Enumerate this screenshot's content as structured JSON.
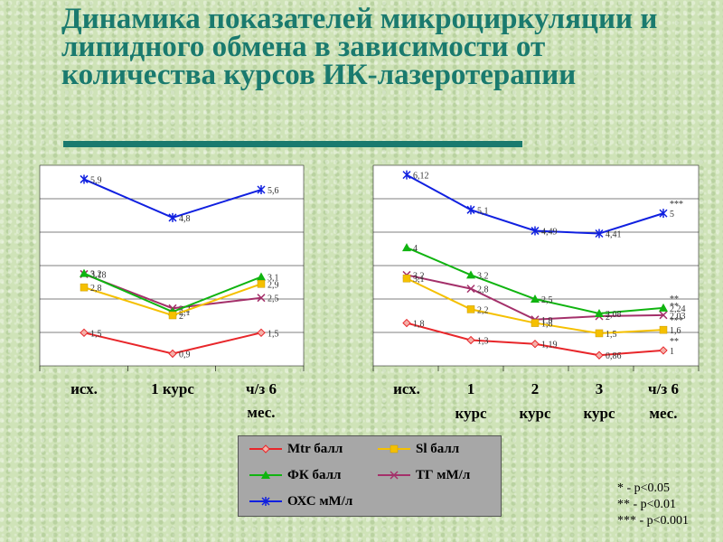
{
  "title": "Динамика показателей микроциркуляции и липидного обмена в зависимости от количества курсов ИК-лазеротерапии",
  "colors": {
    "mtr": "#e8262a",
    "sl": "#f5c000",
    "fk": "#10b410",
    "tg": "#a4306a",
    "oxs": "#1020e0"
  },
  "legend": [
    {
      "key": "mtr",
      "label": "Mtr балл",
      "marker": "diamond"
    },
    {
      "key": "sl",
      "label": "Sl балл",
      "marker": "square"
    },
    {
      "key": "fk",
      "label": "ФК балл",
      "marker": "triangle"
    },
    {
      "key": "tg",
      "label": "ТГ мМ/л",
      "marker": "x"
    },
    {
      "key": "oxs",
      "label": "ОХС мМ/л",
      "marker": "star"
    }
  ],
  "significance": [
    "*     - p<0.05",
    "**   - p<0.01",
    "*** - p<0.001"
  ],
  "chart_data": [
    {
      "type": "line",
      "categories": [
        "исх.",
        "1 курс",
        "ч/з 6 мес."
      ],
      "series": [
        {
          "name": "ОХС мМ/л",
          "key": "oxs",
          "values": [
            5.9,
            4.8,
            5.6
          ],
          "labels": [
            "5,9",
            "4,8",
            "5,6"
          ]
        },
        {
          "name": "ТГ мМ/л",
          "key": "tg",
          "values": [
            3.18,
            2.2,
            2.5
          ],
          "labels": [
            "3,18",
            "2,2",
            "2,5"
          ]
        },
        {
          "name": "ФК балл",
          "key": "fk",
          "values": [
            3.2,
            2.1,
            3.1
          ],
          "labels": [
            "3,2",
            "2,1",
            "3,1"
          ]
        },
        {
          "name": "Sl балл",
          "key": "sl",
          "values": [
            2.8,
            2,
            2.9
          ],
          "labels": [
            "2,8",
            "2",
            "2,9"
          ]
        },
        {
          "name": "Mtr балл",
          "key": "mtr",
          "values": [
            1.5,
            0.9,
            1.5
          ],
          "labels": [
            "1,5",
            "0,9",
            "1,5"
          ]
        }
      ],
      "grid": true
    },
    {
      "type": "line",
      "categories": [
        "исх.",
        "1 курс",
        "2 курс",
        "3 курс",
        "ч/з 6 мес."
      ],
      "series": [
        {
          "name": "ОХС мМ/л",
          "key": "oxs",
          "values": [
            6.12,
            5.1,
            4.49,
            4.41,
            5
          ],
          "labels": [
            "6,12",
            "5,1",
            "4,49",
            "4,41",
            "5"
          ]
        },
        {
          "name": "ТГ мМ/л",
          "key": "tg",
          "values": [
            3.2,
            2.8,
            1.9,
            2,
            2.03
          ],
          "labels": [
            "3,2",
            "2,8",
            "1,9",
            "2",
            "2,03"
          ]
        },
        {
          "name": "ФК балл",
          "key": "fk",
          "values": [
            4,
            3.2,
            2.5,
            2.08,
            2.24
          ],
          "labels": [
            "4",
            "3,2",
            "2,5",
            "2,08",
            "2,24"
          ]
        },
        {
          "name": "Sl балл",
          "key": "sl",
          "values": [
            3.1,
            2.2,
            1.8,
            1.5,
            1.6
          ],
          "labels": [
            "3,1",
            "2,2",
            "1,8",
            "1,5",
            "1,6"
          ]
        },
        {
          "name": "Mtr балл",
          "key": "mtr",
          "values": [
            1.8,
            1.3,
            1.19,
            0.86,
            1
          ],
          "labels": [
            "1,8",
            "1,3",
            "1,19",
            "0,86",
            "1"
          ]
        }
      ],
      "annotations": [
        {
          "text": "***",
          "series": "oxs",
          "index": 4
        },
        {
          "text": "**",
          "series": "tg",
          "index": 4
        },
        {
          "text": "**",
          "series": "fk",
          "index": 4
        },
        {
          "text": "***",
          "series": "sl",
          "index": 4
        },
        {
          "text": "**",
          "series": "mtr",
          "index": 4
        }
      ],
      "grid": true
    }
  ]
}
